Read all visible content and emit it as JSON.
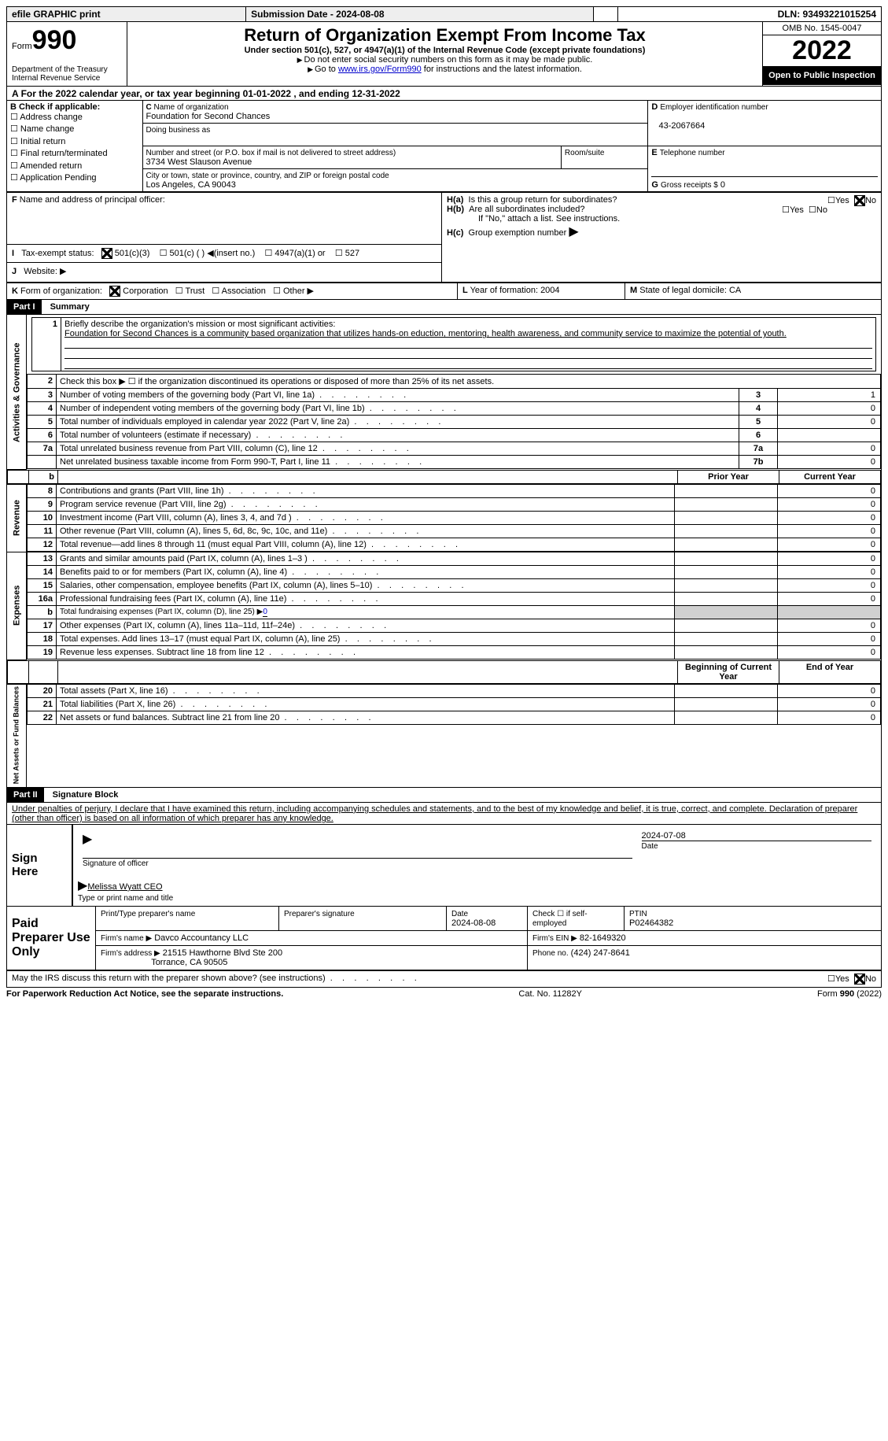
{
  "topbar": {
    "efile": "efile GRAPHIC print",
    "submission": "Submission Date - 2024-08-08",
    "dln": "DLN: 93493221015254"
  },
  "header": {
    "form_label": "Form",
    "form_num": "990",
    "title": "Return of Organization Exempt From Income Tax",
    "sub1": "Under section 501(c), 527, or 4947(a)(1) of the Internal Revenue Code (except private foundations)",
    "sub2": "Do not enter social security numbers on this form as it may be made public.",
    "sub3_pre": "Go to ",
    "sub3_link": "www.irs.gov/Form990",
    "sub3_post": " for instructions and the latest information.",
    "dept": "Department of the Treasury\nInternal Revenue Service",
    "omb": "OMB No. 1545-0047",
    "year": "2022",
    "open": "Open to Public Inspection"
  },
  "A": {
    "text": "For the 2022 calendar year, or tax year beginning 01-01-2022    , and ending 12-31-2022"
  },
  "B": {
    "label": "Check if applicable:",
    "opts": [
      "Address change",
      "Name change",
      "Initial return",
      "Final return/terminated",
      "Amended return",
      "Application Pending"
    ]
  },
  "C": {
    "name_lbl": "Name of organization",
    "name": "Foundation for Second Chances",
    "dba_lbl": "Doing business as",
    "dba": "",
    "street_lbl": "Number and street (or P.O. box if mail is not delivered to street address)",
    "room_lbl": "Room/suite",
    "street": "3734 West Slauson Avenue",
    "city_lbl": "City or town, state or province, country, and ZIP or foreign postal code",
    "city": "Los Angeles, CA  90043"
  },
  "D": {
    "lbl": "Employer identification number",
    "val": "43-2067664"
  },
  "E": {
    "lbl": "Telephone number",
    "val": ""
  },
  "G": {
    "lbl": "Gross receipts $",
    "val": "0"
  },
  "F": {
    "lbl": "Name and address of principal officer:"
  },
  "H": {
    "a": "Is this a group return for subordinates?",
    "b": "Are all subordinates included?",
    "b_note": "If \"No,\" attach a list. See instructions.",
    "c": "Group exemption number",
    "yes": "Yes",
    "no": "No"
  },
  "I": {
    "lbl": "Tax-exempt status:",
    "opts": [
      "501(c)(3)",
      "501(c) (  ) ◀(insert no.)",
      "4947(a)(1) or",
      "527"
    ]
  },
  "J": {
    "lbl": "Website: ▶"
  },
  "K": {
    "lbl": "Form of organization:",
    "opts": [
      "Corporation",
      "Trust",
      "Association",
      "Other ▶"
    ]
  },
  "L": {
    "lbl": "Year of formation:",
    "val": "2004"
  },
  "M": {
    "lbl": "State of legal domicile:",
    "val": "CA"
  },
  "part1": {
    "hdr": "Part I",
    "title": "Summary",
    "l1_lbl": "Briefly describe the organization's mission or most significant activities:",
    "l1_txt": "Foundation for Second Chances is a community based organization that utilizes hands-on eduction, mentoring, health awareness, and community service to maximize the potential of youth.",
    "l2": "Check this box ▶ ☐ if the organization discontinued its operations or disposed of more than 25% of its net assets.",
    "rows_ag": [
      {
        "n": "3",
        "d": "Number of voting members of the governing body (Part VI, line 1a)",
        "b": "3",
        "v": "1"
      },
      {
        "n": "4",
        "d": "Number of independent voting members of the governing body (Part VI, line 1b)",
        "b": "4",
        "v": "0"
      },
      {
        "n": "5",
        "d": "Total number of individuals employed in calendar year 2022 (Part V, line 2a)",
        "b": "5",
        "v": "0"
      },
      {
        "n": "6",
        "d": "Total number of volunteers (estimate if necessary)",
        "b": "6",
        "v": ""
      },
      {
        "n": "7a",
        "d": "Total unrelated business revenue from Part VIII, column (C), line 12",
        "b": "7a",
        "v": "0"
      },
      {
        "n": "",
        "d": "Net unrelated business taxable income from Form 990-T, Part I, line 11",
        "b": "7b",
        "v": "0"
      }
    ],
    "col_prior": "Prior Year",
    "col_curr": "Current Year",
    "rows_rev": [
      {
        "n": "8",
        "d": "Contributions and grants (Part VIII, line 1h)",
        "p": "",
        "c": "0"
      },
      {
        "n": "9",
        "d": "Program service revenue (Part VIII, line 2g)",
        "p": "",
        "c": "0"
      },
      {
        "n": "10",
        "d": "Investment income (Part VIII, column (A), lines 3, 4, and 7d )",
        "p": "",
        "c": "0"
      },
      {
        "n": "11",
        "d": "Other revenue (Part VIII, column (A), lines 5, 6d, 8c, 9c, 10c, and 11e)",
        "p": "",
        "c": "0"
      },
      {
        "n": "12",
        "d": "Total revenue—add lines 8 through 11 (must equal Part VIII, column (A), line 12)",
        "p": "",
        "c": "0"
      }
    ],
    "rows_exp": [
      {
        "n": "13",
        "d": "Grants and similar amounts paid (Part IX, column (A), lines 1–3 )",
        "p": "",
        "c": "0"
      },
      {
        "n": "14",
        "d": "Benefits paid to or for members (Part IX, column (A), line 4)",
        "p": "",
        "c": "0"
      },
      {
        "n": "15",
        "d": "Salaries, other compensation, employee benefits (Part IX, column (A), lines 5–10)",
        "p": "",
        "c": "0"
      },
      {
        "n": "16a",
        "d": "Professional fundraising fees (Part IX, column (A), line 11e)",
        "p": "",
        "c": "0"
      },
      {
        "n": "b",
        "d": "Total fundraising expenses (Part IX, column (D), line 25) ▶",
        "p": "shade",
        "c": "shade",
        "inline": "0"
      },
      {
        "n": "17",
        "d": "Other expenses (Part IX, column (A), lines 11a–11d, 11f–24e)",
        "p": "",
        "c": "0"
      },
      {
        "n": "18",
        "d": "Total expenses. Add lines 13–17 (must equal Part IX, column (A), line 25)",
        "p": "",
        "c": "0"
      },
      {
        "n": "19",
        "d": "Revenue less expenses. Subtract line 18 from line 12",
        "p": "",
        "c": "0"
      }
    ],
    "col_beg": "Beginning of Current Year",
    "col_end": "End of Year",
    "rows_na": [
      {
        "n": "20",
        "d": "Total assets (Part X, line 16)",
        "p": "",
        "c": "0"
      },
      {
        "n": "21",
        "d": "Total liabilities (Part X, line 26)",
        "p": "",
        "c": "0"
      },
      {
        "n": "22",
        "d": "Net assets or fund balances. Subtract line 21 from line 20",
        "p": "",
        "c": "0"
      }
    ],
    "side_ag": "Activities & Governance",
    "side_rev": "Revenue",
    "side_exp": "Expenses",
    "side_na": "Net Assets or Fund Balances"
  },
  "part2": {
    "hdr": "Part II",
    "title": "Signature Block",
    "decl": "Under penalties of perjury, I declare that I have examined this return, including accompanying schedules and statements, and to the best of my knowledge and belief, it is true, correct, and complete. Declaration of preparer (other than officer) is based on all information of which preparer has any knowledge.",
    "sign_here": "Sign Here",
    "sig_off": "Signature of officer",
    "date_lbl": "Date",
    "date_val": "2024-07-08",
    "name_title": "Melissa Wyatt CEO",
    "type_lbl": "Type or print name and title"
  },
  "paid": {
    "lbl": "Paid Preparer Use Only",
    "print_lbl": "Print/Type preparer's name",
    "sig_lbl": "Preparer's signature",
    "date_lbl": "Date",
    "date_val": "2024-08-08",
    "check_lbl": "Check ☐ if self-employed",
    "ptin_lbl": "PTIN",
    "ptin": "P02464382",
    "firm_name_lbl": "Firm's name    ▶",
    "firm_name": "Davco Accountancy LLC",
    "firm_ein_lbl": "Firm's EIN ▶",
    "firm_ein": "82-1649320",
    "firm_addr_lbl": "Firm's address ▶",
    "firm_addr": "21515 Hawthorne Blvd Ste 200",
    "firm_city": "Torrance, CA  90505",
    "phone_lbl": "Phone no.",
    "phone": "(424) 247-8641"
  },
  "discuss": {
    "q": "May the IRS discuss this return with the preparer shown above? (see instructions)",
    "yes": "Yes",
    "no": "No"
  },
  "footer": {
    "left": "For Paperwork Reduction Act Notice, see the separate instructions.",
    "mid": "Cat. No. 11282Y",
    "right": "Form 990 (2022)"
  }
}
